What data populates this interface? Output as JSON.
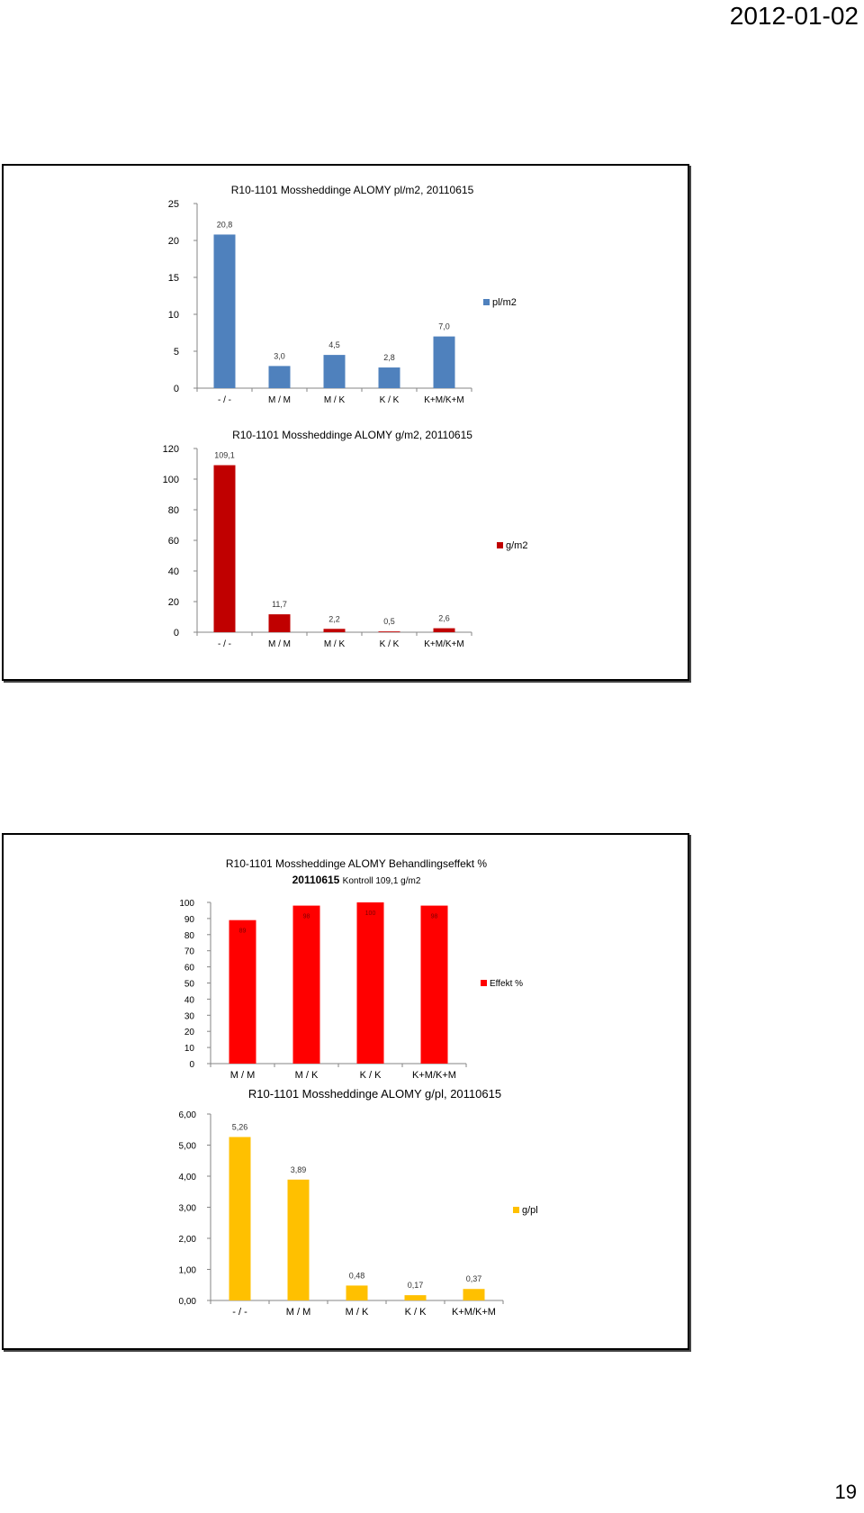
{
  "page": {
    "date": "2012-01-02",
    "number": "19"
  },
  "chart_data": [
    {
      "type": "bar",
      "title": "R10-1101 Mossheddinge  ALOMY pl/m2, 20110615",
      "categories": [
        "- / -",
        "M / M",
        "M / K",
        "K / K",
        "K+M/K+M"
      ],
      "series": [
        {
          "name": "pl/m2",
          "values": [
            20.8,
            3.0,
            4.5,
            2.8,
            7.0
          ],
          "labels": [
            "20,8",
            "3,0",
            "4,5",
            "2,8",
            "7,0"
          ],
          "color": "#4f81bd"
        }
      ],
      "ylim": [
        0,
        25
      ],
      "yticks": [
        "0",
        "5",
        "10",
        "15",
        "20",
        "25"
      ],
      "legend": "right",
      "grid": false
    },
    {
      "type": "bar",
      "title": "R10-1101 Mossheddinge ALOMY g/m2, 20110615",
      "categories": [
        "- / -",
        "M / M",
        "M / K",
        "K / K",
        "K+M/K+M"
      ],
      "series": [
        {
          "name": "g/m2",
          "values": [
            109.1,
            11.7,
            2.2,
            0.5,
            2.6
          ],
          "labels": [
            "109,1",
            "11,7",
            "2,2",
            "0,5",
            "2,6"
          ],
          "color": "#c00000"
        }
      ],
      "ylim": [
        0,
        120
      ],
      "yticks": [
        "0",
        "20",
        "40",
        "60",
        "80",
        "100",
        "120"
      ],
      "legend": "right",
      "grid": false
    },
    {
      "type": "bar",
      "title": "R10-1101 Mossheddinge  ALOMY Behandlingseffekt %",
      "subtitle_bold": "20110615",
      "subtitle_normal": "Kontroll 109,1 g/m2",
      "categories": [
        "M / M",
        "M / K",
        "K / K",
        "K+M/K+M"
      ],
      "series": [
        {
          "name": "Effekt %",
          "values": [
            89,
            98,
            100,
            98
          ],
          "labels": [
            "89",
            "98",
            "100",
            "98"
          ],
          "color": "#ff0000"
        }
      ],
      "ylim": [
        0,
        100
      ],
      "yticks": [
        "0",
        "10",
        "20",
        "30",
        "40",
        "50",
        "60",
        "70",
        "80",
        "90",
        "100"
      ],
      "legend": "right",
      "grid": false
    },
    {
      "type": "bar",
      "title": "R10-1101 Mossheddinge  ALOMY g/pl, 20110615",
      "categories": [
        "- / -",
        "M / M",
        "M / K",
        "K / K",
        "K+M/K+M"
      ],
      "series": [
        {
          "name": "g/pl",
          "values": [
            5.26,
            3.89,
            0.48,
            0.17,
            0.37
          ],
          "labels": [
            "5,26",
            "3,89",
            "0,48",
            "0,17",
            "0,37"
          ],
          "color": "#ffc000"
        }
      ],
      "ylim": [
        0,
        6
      ],
      "yticks": [
        "0,00",
        "1,00",
        "2,00",
        "3,00",
        "4,00",
        "5,00",
        "6,00"
      ],
      "legend": "right",
      "grid": false
    }
  ]
}
